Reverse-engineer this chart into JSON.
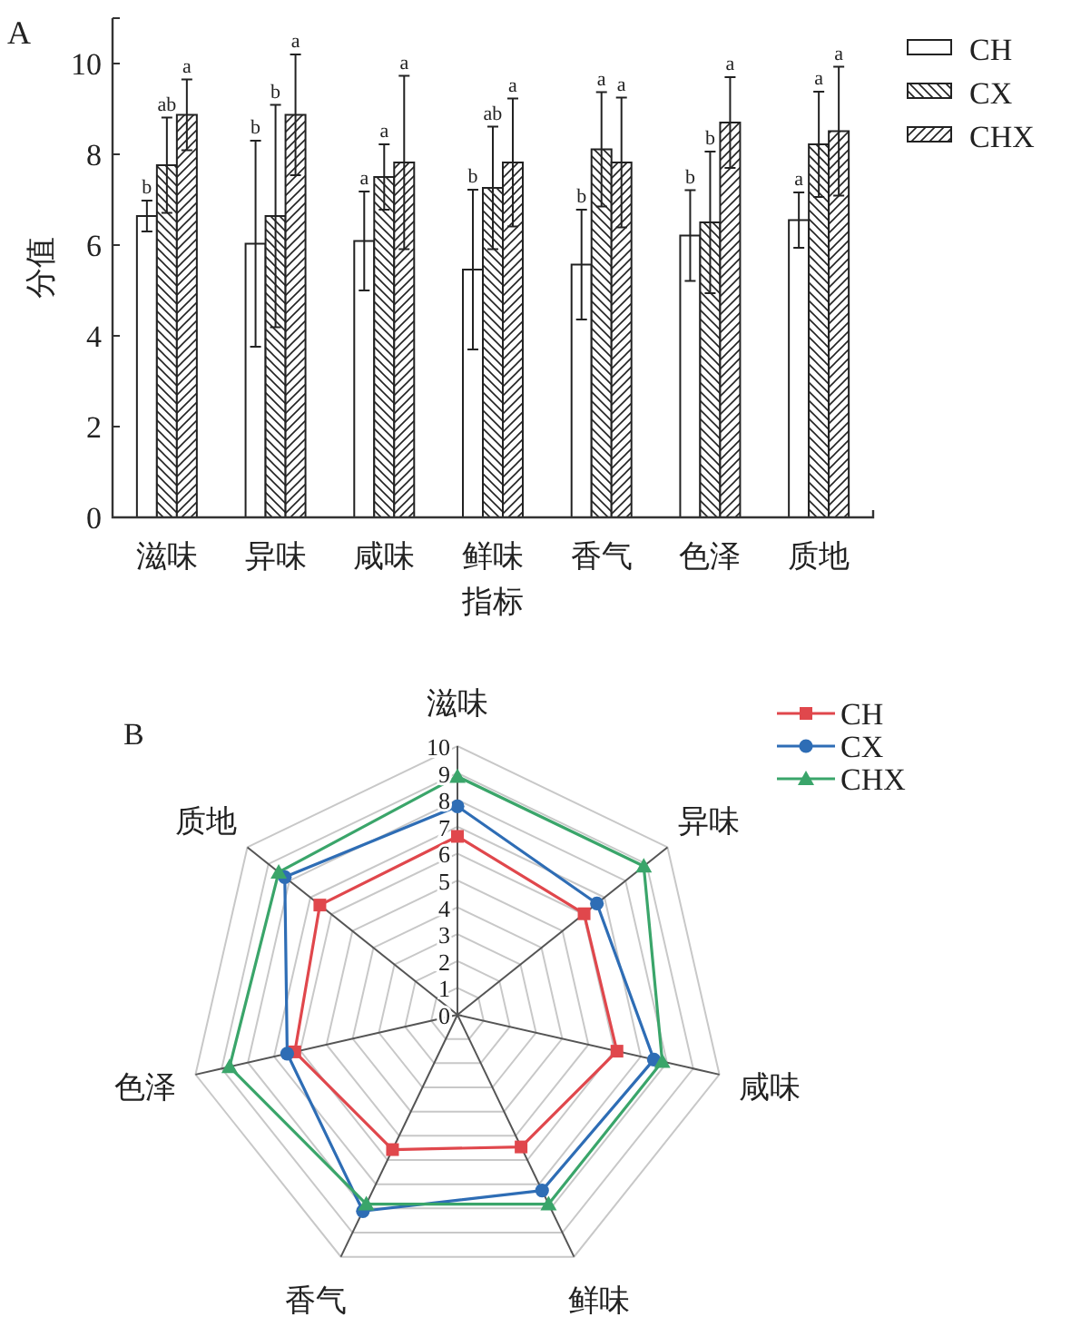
{
  "chart_data": [
    {
      "type": "bar",
      "title": "A",
      "xlabel": "指标",
      "ylabel": "分值",
      "categories": [
        "滋味",
        "异味",
        "咸味",
        "鲜味",
        "香气",
        "色泽",
        "质地"
      ],
      "series": [
        {
          "name": "CH",
          "color": "#ffffff",
          "values": [
            6.64,
            6.03,
            6.09,
            5.46,
            5.57,
            6.21,
            6.55
          ],
          "errors": [
            0.34,
            2.27,
            1.09,
            1.76,
            1.21,
            1.0,
            0.61
          ]
        },
        {
          "name": "CX",
          "color": "#ffffff",
          "values": [
            7.76,
            6.64,
            7.5,
            7.26,
            8.11,
            6.5,
            8.22
          ],
          "errors": [
            1.05,
            2.45,
            0.72,
            1.35,
            1.26,
            1.56,
            1.16
          ]
        },
        {
          "name": "CHX",
          "color": "#ffffff",
          "values": [
            8.87,
            8.87,
            7.82,
            7.82,
            7.82,
            8.7,
            8.51
          ],
          "errors": [
            0.78,
            1.33,
            1.91,
            1.41,
            1.43,
            1.0,
            1.42
          ]
        }
      ],
      "annotations": [
        "b",
        "ab",
        "a",
        "b",
        "b",
        "a",
        "a",
        "a",
        "a",
        "b",
        "ab",
        "a",
        "b",
        "a",
        "a",
        "b",
        "b",
        "a",
        "a",
        "a",
        "a"
      ],
      "ylim": [
        0,
        11
      ],
      "yticks": [
        0,
        2,
        4,
        6,
        8,
        10
      ],
      "grid": false,
      "legend": "right"
    },
    {
      "type": "radar",
      "title": "B",
      "categories": [
        "滋味",
        "异味",
        "咸味",
        "鲜味",
        "香气",
        "色泽",
        "质地"
      ],
      "series": [
        {
          "name": "CH",
          "color": "#e0474c",
          "marker": "square",
          "values": [
            6.64,
            6.03,
            6.09,
            5.46,
            5.57,
            6.21,
            6.55
          ]
        },
        {
          "name": "CX",
          "color": "#2e6db5",
          "marker": "circle",
          "values": [
            7.76,
            6.64,
            7.5,
            7.26,
            8.11,
            6.5,
            8.22
          ]
        },
        {
          "name": "CHX",
          "color": "#3aa56a",
          "marker": "triangle",
          "values": [
            8.87,
            8.87,
            7.82,
            7.82,
            7.82,
            8.7,
            8.51
          ]
        }
      ],
      "ylim": [
        0,
        10
      ],
      "yticks": [
        0,
        1,
        2,
        3,
        4,
        5,
        6,
        7,
        8,
        9,
        10
      ],
      "grid": true,
      "legend": "top right"
    }
  ]
}
